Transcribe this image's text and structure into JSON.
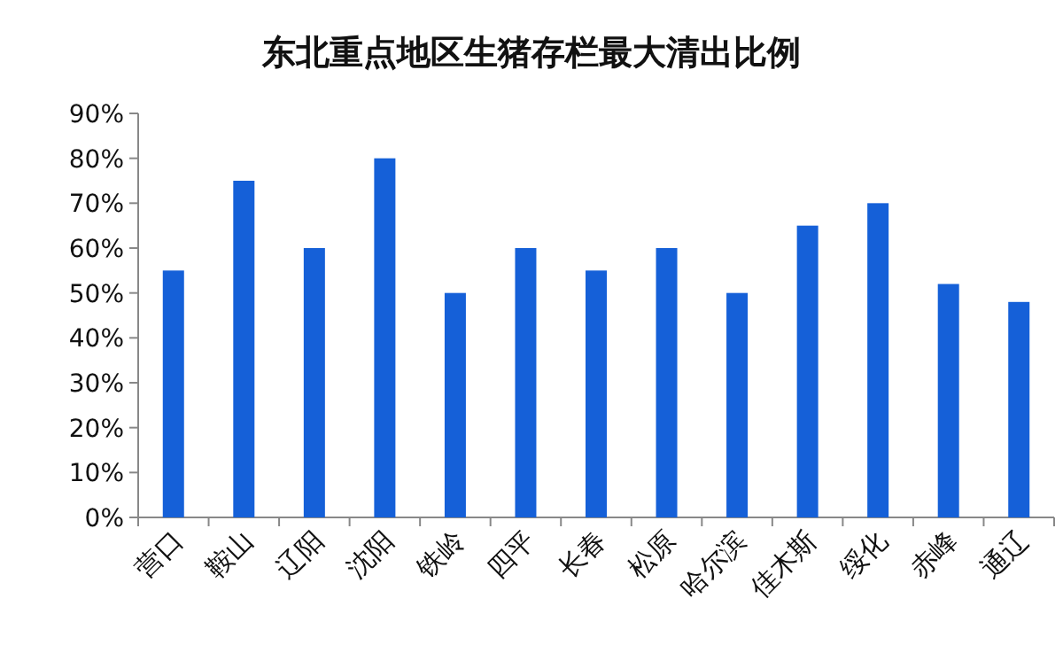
{
  "chart_data": {
    "type": "bar",
    "title": "东北重点地区生猪存栏最大清出比例",
    "categories": [
      "营口",
      "鞍山",
      "辽阳",
      "沈阳",
      "铁岭",
      "四平",
      "长春",
      "松原",
      "哈尔滨",
      "佳木斯",
      "绥化",
      "赤峰",
      "通辽"
    ],
    "values": [
      55,
      75,
      60,
      80,
      50,
      60,
      55,
      60,
      50,
      65,
      70,
      52,
      48
    ],
    "color": "#1560d8",
    "ylim": [
      0,
      90
    ],
    "yticks": [
      {
        "value": 0,
        "label": "0%"
      },
      {
        "value": 10,
        "label": "10%"
      },
      {
        "value": 20,
        "label": "20%"
      },
      {
        "value": 30,
        "label": "30%"
      },
      {
        "value": 40,
        "label": "40%"
      },
      {
        "value": 50,
        "label": "50%"
      },
      {
        "value": 60,
        "label": "60%"
      },
      {
        "value": 70,
        "label": "70%"
      },
      {
        "value": 80,
        "label": "80%"
      },
      {
        "value": 90,
        "label": "90%"
      }
    ]
  }
}
